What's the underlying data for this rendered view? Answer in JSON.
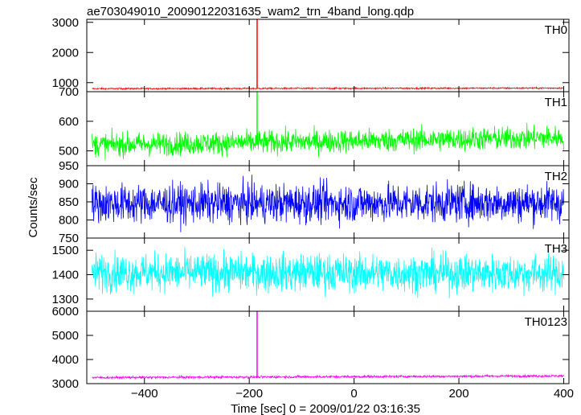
{
  "chart_data": {
    "type": "line",
    "title": "ae703049010_20090122031635_wam2_trn_4band_long.qdp",
    "xlabel": "Time [sec] 0 = 2009/01/22 03:16:35",
    "ylabel": "Counts/sec",
    "xlim": [
      -510,
      410
    ],
    "xticks": [
      -400,
      -200,
      0,
      200,
      400
    ],
    "x_range": [
      -500,
      400
    ],
    "grid": false,
    "panels": [
      {
        "name": "TH0",
        "color": "#ff0000",
        "ylim": [
          700,
          3100
        ],
        "yticks": [
          1000,
          2000,
          3000
        ],
        "baseline_start": 800,
        "baseline_end": 820,
        "noise": 18,
        "spike": {
          "x": -185,
          "y": 3100
        }
      },
      {
        "name": "TH1",
        "color": "#00ff00",
        "ylim": [
          450,
          700
        ],
        "yticks": [
          500,
          600,
          700
        ],
        "baseline_start": 520,
        "baseline_end": 545,
        "noise": 28,
        "spike": {
          "x": -185,
          "y": 700
        }
      },
      {
        "name": "TH2",
        "color": "#0000ff",
        "ylim": [
          750,
          950
        ],
        "yticks": [
          750,
          800,
          850,
          900,
          950
        ],
        "baseline_start": 845,
        "baseline_end": 848,
        "noise": 38,
        "spike": null
      },
      {
        "name": "TH3",
        "color": "#00ffff",
        "ylim": [
          1250,
          1550
        ],
        "yticks": [
          1300,
          1400,
          1500
        ],
        "baseline_start": 1410,
        "baseline_end": 1405,
        "noise": 55,
        "spike": null
      },
      {
        "name": "TH0123",
        "color": "#ff00ff",
        "ylim": [
          3000,
          6000
        ],
        "yticks": [
          3000,
          4000,
          5000,
          6000
        ],
        "baseline_start": 3250,
        "baseline_end": 3320,
        "noise": 35,
        "spike": {
          "x": -185,
          "y": 6000
        }
      }
    ]
  }
}
